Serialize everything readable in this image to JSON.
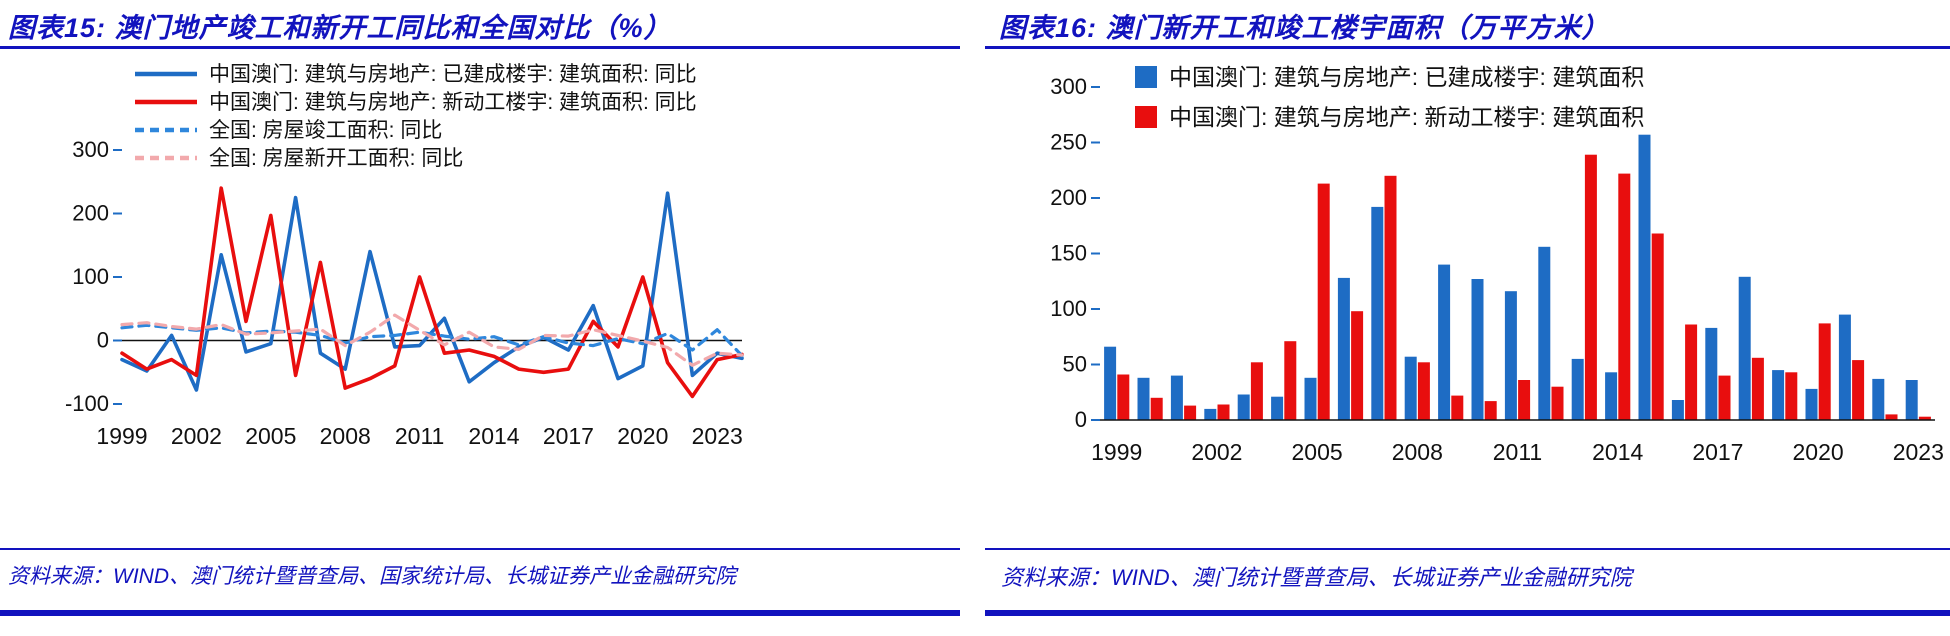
{
  "page": {
    "accent_blue": "#1213BE",
    "text_color": "#111111",
    "background": "#ffffff"
  },
  "figures": [
    {
      "label": "图表15:",
      "title": "图表15:  澳门地产竣工和新开工同比和全国对比（%）",
      "source": "资料来源：WIND、澳门统计暨普查局、国家统计局、长城证券产业金融研究院"
    },
    {
      "label": "图表16:",
      "title": "图表16:  澳门新开工和竣工楼宇面积（万平方米）",
      "source": "资料来源：WIND、澳门统计暨普查局、长城证券产业金融研究院"
    }
  ],
  "chart_data": [
    {
      "type": "line",
      "title": "澳门地产竣工和新开工同比和全国对比（%）",
      "xlabel": "",
      "ylabel": "",
      "unit": "%",
      "grid": false,
      "legend_position": "top-left",
      "ylim": [
        -100,
        300
      ],
      "yticks": [
        300,
        200,
        100,
        0,
        -100
      ],
      "x": [
        1999,
        2000,
        2001,
        2002,
        2003,
        2004,
        2005,
        2006,
        2007,
        2008,
        2009,
        2010,
        2011,
        2012,
        2013,
        2014,
        2015,
        2016,
        2017,
        2018,
        2019,
        2020,
        2021,
        2022,
        2023,
        2024
      ],
      "xticks": [
        1999,
        2002,
        2005,
        2008,
        2011,
        2014,
        2017,
        2020,
        2023
      ],
      "tick_color": "#1E6CC4",
      "series": [
        {
          "name": "中国澳门: 建筑与房地产: 已建成楼宇: 建筑面积: 同比",
          "color": "#1E6CC4",
          "dash": false,
          "values": [
            -30,
            -48,
            8,
            -78,
            135,
            -18,
            -5,
            225,
            -20,
            -45,
            140,
            -10,
            -8,
            35,
            -65,
            -35,
            -10,
            5,
            -15,
            55,
            -60,
            -40,
            232,
            -55,
            -20,
            -28
          ]
        },
        {
          "name": "中国澳门: 建筑与房地产: 新动工楼宇: 建筑面积: 同比",
          "color": "#E80E0E",
          "dash": false,
          "values": [
            -20,
            -45,
            -30,
            -55,
            240,
            30,
            197,
            -55,
            123,
            -75,
            -60,
            -40,
            100,
            -20,
            -15,
            -25,
            -45,
            -50,
            -45,
            30,
            -10,
            100,
            -35,
            -88,
            -30,
            -22
          ]
        },
        {
          "name": "全国: 房屋竣工面积: 同比",
          "color": "#2F87DC",
          "dash": true,
          "values": [
            20,
            24,
            20,
            16,
            20,
            12,
            15,
            13,
            8,
            -4,
            6,
            8,
            13,
            7,
            2,
            6,
            -7,
            6,
            -4,
            -8,
            3,
            -5,
            11,
            -15,
            17,
            -24
          ]
        },
        {
          "name": "全国: 房屋新开工面积: 同比",
          "color": "#F2A9AC",
          "dash": true,
          "values": [
            25,
            28,
            22,
            18,
            25,
            10,
            12,
            15,
            18,
            -8,
            13,
            40,
            16,
            -7,
            13,
            -10,
            -14,
            8,
            7,
            17,
            8,
            -1,
            -11,
            -39,
            -20,
            -23
          ]
        }
      ]
    },
    {
      "type": "bar",
      "title": "澳门新开工和竣工楼宇面积（万平方米）",
      "xlabel": "",
      "ylabel": "",
      "unit": "万平方米",
      "grid": false,
      "legend_position": "top-center",
      "ylim": [
        0,
        300
      ],
      "yticks": [
        300,
        250,
        200,
        150,
        100,
        50,
        0
      ],
      "x": [
        1999,
        2000,
        2001,
        2002,
        2003,
        2004,
        2005,
        2006,
        2007,
        2008,
        2009,
        2010,
        2011,
        2012,
        2013,
        2014,
        2015,
        2016,
        2017,
        2018,
        2019,
        2020,
        2021,
        2022,
        2023
      ],
      "xticks": [
        1999,
        2002,
        2005,
        2008,
        2011,
        2014,
        2017,
        2020,
        2023
      ],
      "tick_color": "#1E6CC4",
      "series": [
        {
          "name": "中国澳门: 建筑与房地产: 已建成楼宇: 建筑面积",
          "color": "#1E6CC4",
          "values": [
            66,
            38,
            40,
            10,
            23,
            21,
            38,
            128,
            192,
            57,
            140,
            127,
            116,
            156,
            55,
            43,
            257,
            18,
            83,
            129,
            45,
            28,
            95,
            37,
            36
          ]
        },
        {
          "name": "中国澳门: 建筑与房地产: 新动工楼宇: 建筑面积",
          "color": "#E80E0E",
          "values": [
            41,
            20,
            13,
            14,
            52,
            71,
            213,
            98,
            220,
            52,
            22,
            17,
            36,
            30,
            239,
            222,
            168,
            86,
            40,
            56,
            43,
            87,
            54,
            5,
            3
          ]
        }
      ]
    }
  ]
}
